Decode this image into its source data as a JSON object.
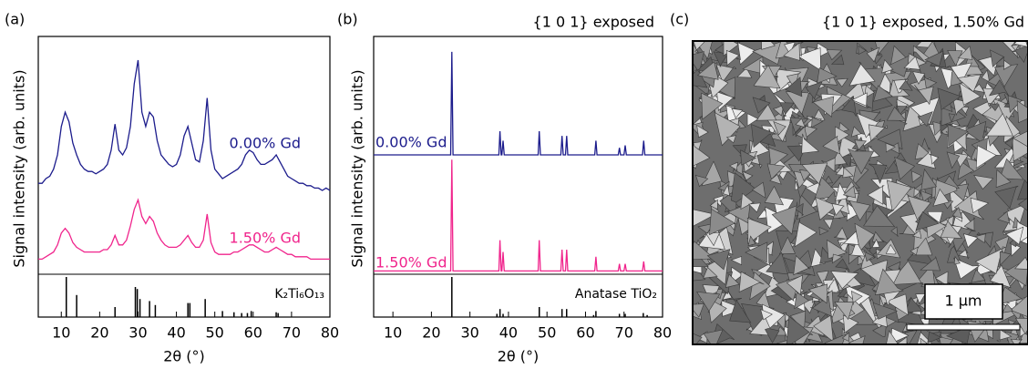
{
  "chart_data": [
    {
      "type": "line",
      "label": "(a)",
      "xlabel": "2θ (°)",
      "ylabel": "Signal intensity (arb. units)",
      "xlim": [
        4,
        80
      ],
      "xticks": [
        10,
        20,
        30,
        40,
        50,
        60,
        70,
        80
      ],
      "ylim": [
        0,
        100
      ],
      "series": [
        {
          "name": "0.00% Gd",
          "color": "#1c1c8c",
          "x": [
            4,
            5,
            6,
            7,
            8,
            9,
            10,
            11,
            12,
            13,
            14,
            15,
            16,
            17,
            18,
            19,
            20,
            21,
            22,
            23,
            24,
            25,
            26,
            27,
            28,
            29,
            30,
            31,
            32,
            33,
            34,
            35,
            36,
            37,
            38,
            39,
            40,
            41,
            42,
            43,
            44,
            45,
            46,
            47,
            48,
            49,
            50,
            51,
            52,
            53,
            54,
            55,
            56,
            57,
            58,
            59,
            60,
            61,
            62,
            63,
            64,
            65,
            66,
            67,
            68,
            69,
            70,
            71,
            72,
            73,
            74,
            75,
            76,
            77,
            78,
            79,
            80
          ],
          "values": [
            38,
            38,
            40,
            41,
            44,
            50,
            62,
            68,
            64,
            55,
            50,
            46,
            44,
            43,
            43,
            42,
            43,
            44,
            46,
            52,
            63,
            52,
            50,
            53,
            62,
            80,
            90,
            68,
            62,
            68,
            66,
            56,
            50,
            48,
            46,
            45,
            46,
            50,
            58,
            62,
            55,
            48,
            47,
            56,
            74,
            52,
            44,
            42,
            40,
            41,
            42,
            43,
            44,
            46,
            50,
            52,
            51,
            48,
            46,
            46,
            47,
            48,
            50,
            47,
            44,
            41,
            40,
            39,
            38,
            38,
            37,
            37,
            36,
            36,
            35,
            36,
            35
          ]
        },
        {
          "name": "1.50% Gd",
          "color": "#f0248c",
          "x": [
            4,
            5,
            6,
            7,
            8,
            9,
            10,
            11,
            12,
            13,
            14,
            15,
            16,
            17,
            18,
            19,
            20,
            21,
            22,
            23,
            24,
            25,
            26,
            27,
            28,
            29,
            30,
            31,
            32,
            33,
            34,
            35,
            36,
            37,
            38,
            39,
            40,
            41,
            42,
            43,
            44,
            45,
            46,
            47,
            48,
            49,
            50,
            51,
            52,
            53,
            54,
            55,
            56,
            57,
            58,
            59,
            60,
            61,
            62,
            63,
            64,
            65,
            66,
            67,
            68,
            69,
            70,
            71,
            72,
            73,
            74,
            75,
            76,
            77,
            78,
            79,
            80
          ],
          "values": [
            6,
            6,
            7,
            8,
            9,
            12,
            17,
            19,
            17,
            13,
            11,
            10,
            9,
            9,
            9,
            9,
            9,
            10,
            10,
            12,
            16,
            12,
            12,
            14,
            20,
            27,
            31,
            24,
            21,
            24,
            22,
            17,
            14,
            12,
            11,
            11,
            11,
            12,
            14,
            16,
            13,
            11,
            11,
            14,
            25,
            13,
            9,
            8,
            8,
            8,
            8,
            9,
            9,
            10,
            11,
            12,
            12,
            11,
            10,
            9,
            9,
            10,
            11,
            10,
            9,
            8,
            8,
            7,
            7,
            7,
            7,
            6,
            6,
            6,
            6,
            6,
            6
          ]
        }
      ],
      "reference": {
        "name": "K₂Ti₆O₁₃",
        "color": "#000000",
        "ylim": [
          0,
          100
        ],
        "x": [
          11.3,
          14,
          24,
          29.3,
          29.8,
          30.5,
          33,
          34.5,
          43,
          43.5,
          47.5,
          52,
          55,
          57,
          58.5,
          59.5,
          66,
          66.5
        ],
        "values": [
          100,
          55,
          25,
          75,
          70,
          45,
          40,
          30,
          35,
          35,
          45,
          15,
          12,
          10,
          10,
          15,
          12,
          10
        ]
      }
    },
    {
      "type": "line",
      "label": "(b)",
      "title": "{1 0 1} exposed",
      "xlabel": "2θ (°)",
      "ylabel": "Signal intensity (arb. units)",
      "xlim": [
        5,
        80
      ],
      "xticks": [
        10,
        20,
        30,
        40,
        50,
        60,
        70,
        80
      ],
      "ylim": [
        0,
        100
      ],
      "series": [
        {
          "name": "0.00% Gd",
          "color": "#1c1c8c",
          "x": [
            5,
            25.0,
            25.3,
            25.6,
            37.5,
            37.8,
            38.1,
            38.3,
            38.6,
            38.9,
            47.7,
            48,
            48.3,
            53.6,
            53.9,
            54.2,
            54.8,
            55.1,
            55.4,
            62.4,
            62.7,
            63,
            68.5,
            68.8,
            69.1,
            70,
            70.3,
            70.6,
            74.8,
            75.1,
            75.4,
            80
          ],
          "values": [
            50,
            50,
            93.5,
            50,
            50,
            60,
            50,
            50,
            56,
            50,
            50,
            60,
            50,
            50,
            58,
            50,
            50,
            58,
            50,
            50,
            56,
            50,
            50,
            53,
            50,
            50,
            54,
            50,
            50,
            56,
            50,
            50
          ]
        },
        {
          "name": "1.50% Gd",
          "color": "#f0248c",
          "x": [
            5,
            25.0,
            25.3,
            25.6,
            37.5,
            37.8,
            38.1,
            38.3,
            38.6,
            38.9,
            47.7,
            48,
            48.3,
            53.6,
            53.9,
            54.2,
            54.8,
            55.1,
            55.4,
            62.4,
            62.7,
            63,
            68.5,
            68.8,
            69.1,
            70,
            70.3,
            70.6,
            74.8,
            75.1,
            75.4,
            80
          ],
          "values": [
            1,
            1,
            48,
            1,
            1,
            14,
            1,
            1,
            9,
            1,
            1,
            14,
            1,
            1,
            10,
            1,
            1,
            10,
            1,
            1,
            7,
            1,
            1,
            4,
            1,
            1,
            4,
            1,
            1,
            5,
            1,
            1
          ]
        }
      ],
      "reference": {
        "name": "Anatase TiO₂",
        "color": "#000000",
        "ylim": [
          0,
          100
        ],
        "x": [
          25.3,
          37,
          37.8,
          38.6,
          48,
          53.9,
          55.1,
          62.1,
          62.7,
          68.8,
          70.3,
          75,
          76
        ],
        "values": [
          100,
          8,
          20,
          8,
          25,
          20,
          20,
          5,
          15,
          8,
          8,
          10,
          5
        ]
      }
    }
  ],
  "image": {
    "label": "(c)",
    "title": "{1 0 1} exposed, 1.50% Gd",
    "scale_bar": "1 μm"
  }
}
